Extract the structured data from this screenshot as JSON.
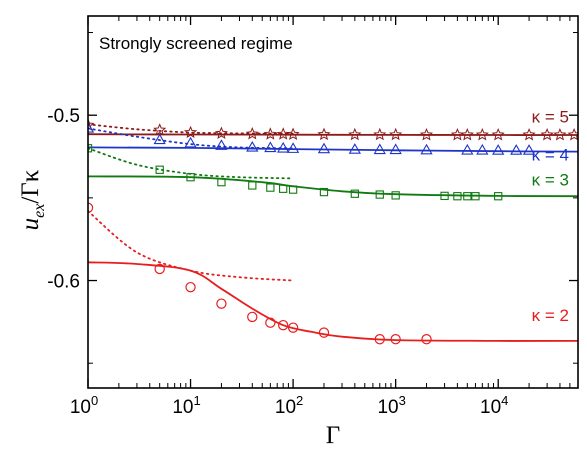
{
  "chart_data": {
    "type": "scatter",
    "annotation": "Strongly screened regime",
    "xlabel": "Γ",
    "ylabel_main": "u",
    "ylabel_sub": "ex",
    "ylabel_tail": "/Γκ",
    "xscale": "log",
    "xlim": [
      1,
      60000
    ],
    "ylim": [
      -0.665,
      -0.44
    ],
    "x_ticks": [
      {
        "value": 1,
        "mantissa": "10",
        "exp": "0"
      },
      {
        "value": 10,
        "mantissa": "10",
        "exp": "1"
      },
      {
        "value": 100,
        "mantissa": "10",
        "exp": "2"
      },
      {
        "value": 1000,
        "mantissa": "10",
        "exp": "3"
      },
      {
        "value": 10000,
        "mantissa": "10",
        "exp": "4"
      }
    ],
    "y_ticks": [
      {
        "value": -0.5,
        "label": "-0.5"
      },
      {
        "value": -0.6,
        "label": "-0.6"
      }
    ],
    "grid": false,
    "legend": "inline labels at right",
    "series": [
      {
        "label": "κ = 5",
        "color": "#8b1a1a",
        "marker": "star",
        "points": [
          [
            1,
            -0.506
          ],
          [
            5,
            -0.509
          ],
          [
            10,
            -0.5105
          ],
          [
            20,
            -0.511
          ],
          [
            40,
            -0.5113
          ],
          [
            60,
            -0.5115
          ],
          [
            80,
            -0.5115
          ],
          [
            100,
            -0.5116
          ],
          [
            200,
            -0.5117
          ],
          [
            400,
            -0.5118
          ],
          [
            700,
            -0.5118
          ],
          [
            1000,
            -0.5118
          ],
          [
            2000,
            -0.5119
          ],
          [
            4000,
            -0.5119
          ],
          [
            5000,
            -0.5119
          ],
          [
            7000,
            -0.5119
          ],
          [
            10000,
            -0.5119
          ],
          [
            20000,
            -0.5119
          ],
          [
            30000,
            -0.5119
          ],
          [
            40000,
            -0.5119
          ],
          [
            55000,
            -0.5119
          ]
        ],
        "fit": [
          [
            1,
            -0.5115
          ],
          [
            10,
            -0.5117
          ],
          [
            100,
            -0.5118
          ],
          [
            1000,
            -0.5119
          ],
          [
            10000,
            -0.512
          ],
          [
            60000,
            -0.512
          ]
        ],
        "dotted": [
          [
            1,
            -0.5055
          ],
          [
            3,
            -0.5085
          ],
          [
            10,
            -0.5105
          ],
          [
            30,
            -0.511
          ],
          [
            100,
            -0.5112
          ]
        ]
      },
      {
        "label": "κ = 4",
        "color": "#1f35c8",
        "marker": "triangle",
        "points": [
          [
            1,
            -0.508
          ],
          [
            5,
            -0.515
          ],
          [
            10,
            -0.517
          ],
          [
            20,
            -0.5185
          ],
          [
            40,
            -0.5195
          ],
          [
            60,
            -0.5198
          ],
          [
            80,
            -0.5201
          ],
          [
            100,
            -0.5203
          ],
          [
            200,
            -0.5205
          ],
          [
            400,
            -0.5208
          ],
          [
            700,
            -0.521
          ],
          [
            1000,
            -0.521
          ],
          [
            2000,
            -0.5212
          ],
          [
            5000,
            -0.5213
          ],
          [
            7000,
            -0.5213
          ],
          [
            10000,
            -0.5214
          ],
          [
            15000,
            -0.5214
          ],
          [
            20000,
            -0.5214
          ]
        ],
        "fit": [
          [
            1,
            -0.5195
          ],
          [
            10,
            -0.5198
          ],
          [
            100,
            -0.5205
          ],
          [
            1000,
            -0.5212
          ],
          [
            10000,
            -0.5218
          ],
          [
            60000,
            -0.522
          ]
        ],
        "dotted": [
          [
            1,
            -0.508
          ],
          [
            3,
            -0.513
          ],
          [
            10,
            -0.5175
          ],
          [
            30,
            -0.5195
          ],
          [
            100,
            -0.52
          ]
        ]
      },
      {
        "label": "κ = 3",
        "color": "#127a12",
        "marker": "square",
        "points": [
          [
            1,
            -0.52
          ],
          [
            5,
            -0.533
          ],
          [
            10,
            -0.5375
          ],
          [
            20,
            -0.5405
          ],
          [
            40,
            -0.5425
          ],
          [
            60,
            -0.5438
          ],
          [
            80,
            -0.5445
          ],
          [
            100,
            -0.545
          ],
          [
            200,
            -0.5465
          ],
          [
            400,
            -0.5475
          ],
          [
            700,
            -0.548
          ],
          [
            1000,
            -0.5485
          ],
          [
            3000,
            -0.5488
          ],
          [
            4000,
            -0.549
          ],
          [
            5000,
            -0.549
          ],
          [
            6000,
            -0.549
          ],
          [
            10000,
            -0.549
          ]
        ],
        "fit": [
          [
            1,
            -0.537
          ],
          [
            10,
            -0.5375
          ],
          [
            50,
            -0.5405
          ],
          [
            100,
            -0.543
          ],
          [
            300,
            -0.546
          ],
          [
            1000,
            -0.5478
          ],
          [
            10000,
            -0.5488
          ],
          [
            60000,
            -0.549
          ]
        ],
        "dotted": [
          [
            1,
            -0.52
          ],
          [
            3,
            -0.53
          ],
          [
            10,
            -0.5355
          ],
          [
            30,
            -0.5375
          ],
          [
            100,
            -0.5382
          ]
        ]
      },
      {
        "label": "κ = 2",
        "color": "#e61e1e",
        "marker": "circle",
        "points": [
          [
            1,
            -0.556
          ],
          [
            5,
            -0.593
          ],
          [
            10,
            -0.604
          ],
          [
            20,
            -0.614
          ],
          [
            40,
            -0.622
          ],
          [
            60,
            -0.6255
          ],
          [
            80,
            -0.627
          ],
          [
            100,
            -0.6285
          ],
          [
            200,
            -0.6315
          ],
          [
            700,
            -0.6355
          ],
          [
            1000,
            -0.6355
          ],
          [
            2000,
            -0.6355
          ]
        ],
        "fit": [
          [
            1,
            -0.589
          ],
          [
            3,
            -0.59
          ],
          [
            10,
            -0.594
          ],
          [
            20,
            -0.605
          ],
          [
            40,
            -0.617
          ],
          [
            80,
            -0.627
          ],
          [
            150,
            -0.631
          ],
          [
            300,
            -0.634
          ],
          [
            1000,
            -0.636
          ],
          [
            10000,
            -0.6365
          ],
          [
            60000,
            -0.6365
          ]
        ],
        "dotted": [
          [
            1,
            -0.558
          ],
          [
            3,
            -0.583
          ],
          [
            10,
            -0.594
          ],
          [
            30,
            -0.598
          ],
          [
            100,
            -0.6
          ]
        ]
      }
    ]
  }
}
